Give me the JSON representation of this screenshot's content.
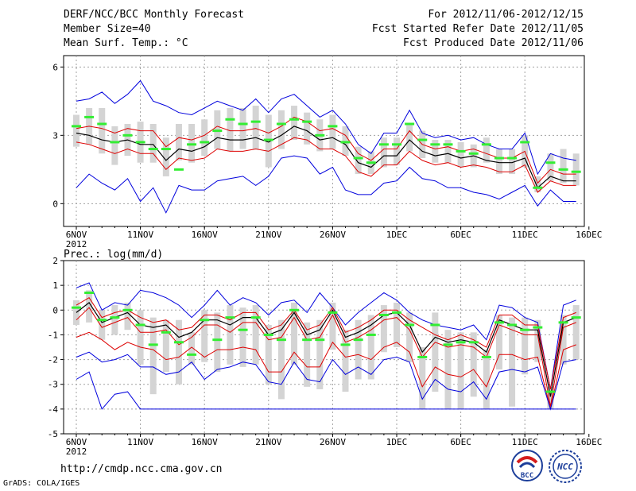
{
  "header": {
    "title": "DERF/NCC/BCC Monthly Forecast",
    "member_size": "Member Size=40",
    "variable_top": "Mean Surf. Temp.: °C",
    "period": "For 2012/11/06-2012/12/15",
    "started": "Fcst Started Refer Date 2012/11/05",
    "produced": "Fcst Produced Date 2012/11/06"
  },
  "footer": {
    "url": "http://cmdp.ncc.cma.gov.cn",
    "grads": "GrADS: COLA/IGES",
    "logo_bcc": "BCC",
    "logo_ncc": "NCC"
  },
  "colors": {
    "envelope": "#0000dd",
    "spread": "#dd0000",
    "mean": "#000000",
    "median": "#33ee33",
    "box": "#d4d4d4",
    "grid": "#a0a0a0"
  },
  "chart_data": [
    {
      "type": "line",
      "title": "Mean Surf. Temp.: °C",
      "xlabel": "",
      "ylabel": "",
      "x_tick_labels": [
        "6NOV",
        "11NOV",
        "16NOV",
        "21NOV",
        "26NOV",
        "1DEC",
        "6DEC",
        "11DEC",
        "16DEC"
      ],
      "x_year_label": "2012",
      "ylim": [
        -1,
        6.5
      ],
      "yticks": [
        0,
        3,
        6
      ],
      "grid": true,
      "days": 40,
      "series": [
        {
          "name": "max",
          "values": [
            4.5,
            4.6,
            4.9,
            4.4,
            4.8,
            5.4,
            4.5,
            4.3,
            4.0,
            3.9,
            4.2,
            4.5,
            4.3,
            4.1,
            4.6,
            4.0,
            4.6,
            4.8,
            4.3,
            3.8,
            4.1,
            3.5,
            2.6,
            2.2,
            3.1,
            3.1,
            4.1,
            3.1,
            2.9,
            3.0,
            2.8,
            2.9,
            2.6,
            2.4,
            2.4,
            3.1,
            1.3,
            2.2,
            2.0,
            1.9
          ]
        },
        {
          "name": "upper",
          "values": [
            3.3,
            3.4,
            3.3,
            3.1,
            3.3,
            3.2,
            3.2,
            2.5,
            2.9,
            2.8,
            3.0,
            3.4,
            3.2,
            3.2,
            3.3,
            3.1,
            3.4,
            3.8,
            3.6,
            3.2,
            3.3,
            3.0,
            2.2,
            1.9,
            2.4,
            2.4,
            3.2,
            2.6,
            2.4,
            2.5,
            2.3,
            2.4,
            2.2,
            2.0,
            2.0,
            2.3,
            0.9,
            1.5,
            1.3,
            1.3
          ]
        },
        {
          "name": "mean",
          "values": [
            3.1,
            3.0,
            2.8,
            2.7,
            2.8,
            2.6,
            2.6,
            1.9,
            2.4,
            2.3,
            2.5,
            2.9,
            2.8,
            2.8,
            2.9,
            2.7,
            3.0,
            3.4,
            3.2,
            2.8,
            2.9,
            2.6,
            1.8,
            1.6,
            2.1,
            2.1,
            2.8,
            2.3,
            2.1,
            2.2,
            2.0,
            2.1,
            1.9,
            1.8,
            1.8,
            2.0,
            0.7,
            1.2,
            1.0,
            1.0
          ]
        },
        {
          "name": "lower",
          "values": [
            2.7,
            2.6,
            2.4,
            2.2,
            2.4,
            2.2,
            2.2,
            1.5,
            2.0,
            1.9,
            2.0,
            2.4,
            2.3,
            2.3,
            2.4,
            2.3,
            2.6,
            2.9,
            2.8,
            2.4,
            2.4,
            2.1,
            1.4,
            1.2,
            1.7,
            1.7,
            2.3,
            1.9,
            1.7,
            1.8,
            1.6,
            1.7,
            1.6,
            1.4,
            1.4,
            1.7,
            0.5,
            1.0,
            0.8,
            0.8
          ]
        },
        {
          "name": "min",
          "values": [
            0.7,
            1.3,
            0.9,
            0.6,
            1.1,
            0.1,
            0.7,
            -0.4,
            0.8,
            0.6,
            0.6,
            1.0,
            1.1,
            1.2,
            0.8,
            1.2,
            2.0,
            2.1,
            2.0,
            1.3,
            1.6,
            0.6,
            0.4,
            0.4,
            0.9,
            1.0,
            1.6,
            1.1,
            1.0,
            0.7,
            0.7,
            0.5,
            0.4,
            0.2,
            0.5,
            0.8,
            -0.1,
            0.6,
            0.1,
            0.1
          ]
        },
        {
          "name": "median",
          "values": [
            3.4,
            3.8,
            3.5,
            2.7,
            3.0,
            2.7,
            2.4,
            2.4,
            1.5,
            2.6,
            2.7,
            3.2,
            3.7,
            3.5,
            3.6,
            2.8,
            3.5,
            3.7,
            3.6,
            3.0,
            3.4,
            2.7,
            2.0,
            1.8,
            2.6,
            2.6,
            3.5,
            2.8,
            2.6,
            2.6,
            2.3,
            2.2,
            2.6,
            2.0,
            2.0,
            2.7,
            0.7,
            1.8,
            1.5,
            1.4
          ]
        },
        {
          "name": "box_high",
          "values": [
            3.9,
            4.2,
            4.2,
            3.4,
            3.5,
            3.6,
            3.5,
            2.9,
            3.5,
            3.5,
            3.7,
            4.1,
            4.2,
            4.2,
            4.3,
            3.9,
            4.1,
            4.3,
            4.0,
            3.7,
            3.9,
            3.4,
            2.5,
            2.3,
            2.9,
            2.9,
            3.5,
            3.2,
            2.8,
            2.8,
            2.7,
            2.6,
            2.9,
            2.4,
            2.4,
            3.0,
            1.2,
            2.2,
            2.4,
            2.2
          ]
        },
        {
          "name": "box_low",
          "values": [
            2.5,
            2.6,
            2.2,
            1.7,
            2.1,
            1.8,
            1.8,
            1.2,
            1.9,
            1.8,
            2.1,
            2.4,
            2.3,
            2.4,
            2.4,
            1.6,
            2.4,
            2.8,
            2.6,
            2.3,
            2.4,
            2.1,
            1.3,
            1.3,
            1.6,
            1.7,
            2.3,
            2.0,
            1.8,
            1.8,
            1.6,
            1.6,
            1.8,
            1.3,
            1.3,
            1.6,
            0.5,
            1.0,
            0.9,
            0.8
          ]
        }
      ]
    },
    {
      "type": "line",
      "title": "Prec.: log(mm/d)",
      "xlabel": "",
      "ylabel": "",
      "x_tick_labels": [
        "6NOV",
        "11NOV",
        "16NOV",
        "21NOV",
        "26NOV",
        "1DEC",
        "6DEC",
        "11DEC",
        "16DEC"
      ],
      "x_year_label": "2012",
      "ylim": [
        -5,
        2
      ],
      "yticks": [
        -5,
        -4,
        -3,
        -2,
        -1,
        0,
        1,
        2
      ],
      "grid": true,
      "days": 40,
      "series": [
        {
          "name": "max",
          "values": [
            0.9,
            1.1,
            0.0,
            0.3,
            0.2,
            0.8,
            0.7,
            0.5,
            0.2,
            -0.3,
            0.2,
            0.8,
            0.2,
            0.5,
            0.3,
            -0.2,
            0.3,
            0.4,
            -0.1,
            0.7,
            0.1,
            -0.6,
            -0.1,
            0.3,
            0.7,
            0.4,
            -0.1,
            -0.4,
            -0.6,
            -0.7,
            -0.8,
            -0.6,
            -1.2,
            0.2,
            0.1,
            -0.3,
            -0.5,
            -3.2,
            0.2,
            0.4
          ]
        },
        {
          "name": "upper",
          "values": [
            0.2,
            0.5,
            -0.3,
            -0.1,
            0.0,
            -0.3,
            -0.5,
            -0.4,
            -0.8,
            -0.7,
            -0.2,
            -0.2,
            -0.4,
            -0.1,
            -0.1,
            -0.8,
            -0.6,
            0.0,
            -0.8,
            -0.6,
            0.1,
            -0.9,
            -0.7,
            -0.4,
            0.0,
            0.0,
            -0.4,
            -0.7,
            -1.0,
            -1.2,
            -1.0,
            -1.2,
            -1.5,
            -0.2,
            -0.2,
            -0.6,
            -0.6,
            -3.2,
            -0.3,
            -0.1
          ]
        },
        {
          "name": "mean",
          "values": [
            -0.1,
            0.3,
            -0.5,
            -0.3,
            -0.1,
            -0.6,
            -0.7,
            -0.6,
            -1.1,
            -0.9,
            -0.4,
            -0.4,
            -0.6,
            -0.3,
            -0.3,
            -1.0,
            -0.8,
            -0.1,
            -1.0,
            -0.8,
            0.0,
            -1.1,
            -0.9,
            -0.6,
            -0.2,
            -0.1,
            -0.6,
            -1.7,
            -1.1,
            -1.3,
            -1.2,
            -1.3,
            -1.7,
            -0.4,
            -0.6,
            -0.8,
            -0.8,
            -3.5,
            -0.5,
            -0.3
          ]
        },
        {
          "name": "lower",
          "values": [
            -0.4,
            0.1,
            -0.7,
            -0.5,
            -0.3,
            -0.9,
            -0.9,
            -0.8,
            -1.4,
            -1.1,
            -0.6,
            -0.6,
            -0.9,
            -0.5,
            -0.5,
            -1.2,
            -1.1,
            -0.3,
            -1.2,
            -1.1,
            -0.2,
            -1.3,
            -1.1,
            -0.8,
            -0.4,
            -0.3,
            -0.8,
            -1.9,
            -1.3,
            -1.5,
            -1.4,
            -1.5,
            -1.9,
            -0.6,
            -0.8,
            -1.0,
            -1.0,
            -3.9,
            -0.7,
            -0.5
          ]
        },
        {
          "name": "lower2",
          "values": [
            -1.1,
            -0.9,
            -1.2,
            -1.6,
            -1.3,
            -1.5,
            -1.6,
            -2.0,
            -1.9,
            -1.5,
            -1.9,
            -1.6,
            -1.6,
            -1.5,
            -1.6,
            -2.5,
            -2.5,
            -1.7,
            -2.3,
            -2.3,
            -1.3,
            -1.9,
            -1.8,
            -2.0,
            -1.5,
            -1.3,
            -1.7,
            -3.1,
            -2.3,
            -2.6,
            -2.7,
            -2.4,
            -3.1,
            -1.8,
            -1.8,
            -2.0,
            -1.9,
            -4.0,
            -1.6,
            -1.4
          ]
        },
        {
          "name": "lower3",
          "values": [
            -1.9,
            -1.7,
            -2.1,
            -2.0,
            -1.8,
            -2.3,
            -2.3,
            -2.6,
            -2.5,
            -2.1,
            -2.8,
            -2.4,
            -2.3,
            -2.1,
            -2.2,
            -2.9,
            -3.0,
            -2.1,
            -2.8,
            -2.9,
            -2.0,
            -2.6,
            -2.3,
            -2.6,
            -2.0,
            -1.9,
            -2.1,
            -3.6,
            -2.8,
            -3.2,
            -3.3,
            -2.9,
            -3.6,
            -2.5,
            -2.4,
            -2.5,
            -2.3,
            -4.0,
            -2.1,
            -2.0
          ]
        },
        {
          "name": "min",
          "values": [
            -2.8,
            -2.5,
            -4.0,
            -3.4,
            -3.3,
            -4.0,
            -4.0,
            -4.0,
            -4.0,
            -4.0,
            -4.0,
            -4.0,
            -4.0,
            -4.0,
            -4.0,
            -4.0,
            -4.0,
            -4.0,
            -4.0,
            -4.0,
            -4.0,
            -4.0,
            -4.0,
            -4.0,
            -4.0,
            -4.0,
            -4.0,
            -4.0,
            -4.0,
            -4.0,
            -4.0,
            -4.0,
            -4.0,
            -4.0,
            -4.0,
            -4.0,
            -4.0,
            -4.0,
            -4.0,
            -4.0
          ]
        },
        {
          "name": "median",
          "values": [
            0.1,
            0.7,
            -0.4,
            -0.3,
            0.0,
            -0.6,
            -1.4,
            -0.9,
            -1.3,
            -1.8,
            -0.4,
            -1.2,
            -0.3,
            -0.8,
            -0.3,
            -1.0,
            -1.2,
            0.0,
            -1.2,
            -1.2,
            -0.1,
            -1.4,
            -1.2,
            -1.0,
            -0.2,
            -0.1,
            -0.6,
            -1.9,
            -0.6,
            -1.4,
            -1.3,
            -1.3,
            -1.9,
            -0.5,
            -0.6,
            -0.8,
            -0.7,
            -3.3,
            -0.5,
            -0.3
          ]
        },
        {
          "name": "box_high",
          "values": [
            0.4,
            0.8,
            0.0,
            0.2,
            0.3,
            0.0,
            -0.3,
            -0.4,
            -0.4,
            -0.9,
            0.0,
            -0.1,
            0.2,
            0.1,
            0.2,
            -0.6,
            -0.4,
            0.3,
            -0.5,
            -0.4,
            0.3,
            -0.8,
            -0.4,
            -0.2,
            0.2,
            0.3,
            -0.1,
            -1.5,
            -0.1,
            -0.8,
            -0.9,
            -0.9,
            -1.6,
            -0.2,
            -0.3,
            -0.3,
            -0.4,
            -3.1,
            -0.2,
            0.2
          ]
        },
        {
          "name": "box_low",
          "values": [
            -0.6,
            -0.5,
            -1.2,
            -1.0,
            -0.8,
            -2.2,
            -3.4,
            -2.5,
            -3.0,
            -2.2,
            -2.1,
            -2.5,
            -2.2,
            -2.3,
            -2.2,
            -3.0,
            -3.6,
            -2.2,
            -3.1,
            -3.2,
            -1.6,
            -3.3,
            -2.8,
            -2.8,
            -1.7,
            -1.5,
            -2.1,
            -4.0,
            -3.3,
            -4.0,
            -4.0,
            -3.5,
            -4.0,
            -2.4,
            -3.9,
            -2.6,
            -2.1,
            -4.0,
            -2.2,
            -2.0
          ]
        }
      ]
    }
  ]
}
